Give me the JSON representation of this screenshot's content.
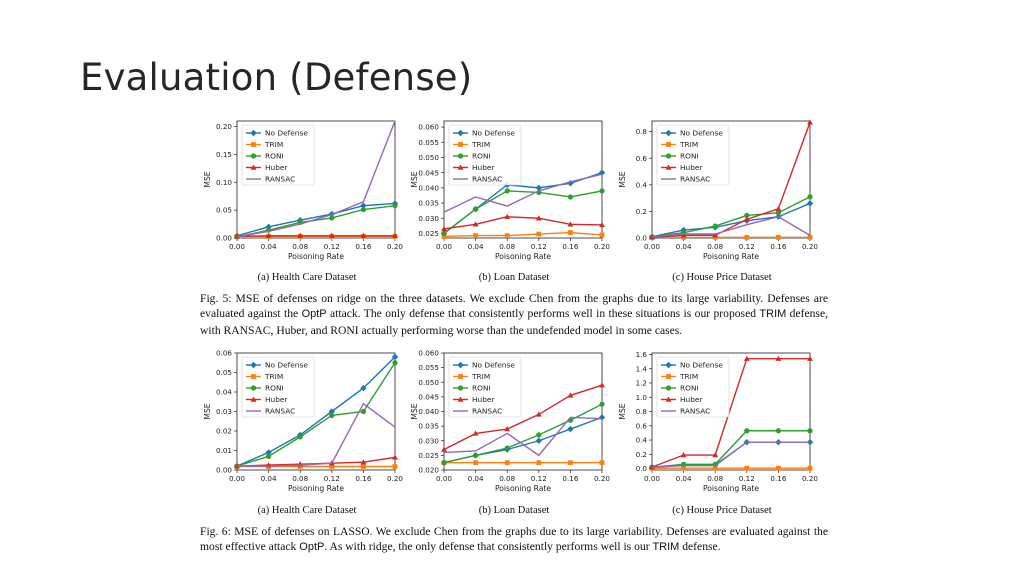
{
  "slide": {
    "title": "Evaluation (Defense)"
  },
  "colors": {
    "No Defense": "#1f77b4",
    "TRIM": "#ff7f0e",
    "RONI": "#2ca02c",
    "Huber": "#d62728",
    "RANSAC": "#9467bd"
  },
  "legend_labels": [
    "No Defense",
    "TRIM",
    "RONI",
    "Huber",
    "RANSAC"
  ],
  "captions": {
    "fig5": {
      "p1": "Fig. 5: MSE of defenses on ridge on the three datasets. We exclude Chen from the graphs due to its large variability. Defenses are evaluated against the ",
      "attack": "OptP",
      "p2": " attack. The only defense that consistently performs well in these situations is our proposed ",
      "trim": "TRIM",
      "p3": " defense, with RANSAC, Huber, and RONI actually performing worse than the undefended model in some cases."
    },
    "fig6": {
      "p1": "Fig. 6: MSE of defenses on LASSO. We exclude Chen from the graphs due to its large variability. Defenses are evaluated against the most effective attack ",
      "attack": "OptP",
      "p2": ". As with ridge, the only defense that consistently performs well is our ",
      "trim": "TRIM",
      "p3": " defense."
    }
  },
  "chart_data": [
    {
      "type": "line",
      "figure": "Fig. 5",
      "subtitle": "(a) Health Care Dataset",
      "xlabel": "Poisoning Rate",
      "ylabel": "MSE",
      "x": [
        0.0,
        0.04,
        0.08,
        0.12,
        0.16,
        0.2
      ],
      "xticks": [
        "0.00",
        "0.04",
        "0.08",
        "0.12",
        "0.16",
        "0.20"
      ],
      "ylim": [
        0,
        0.21
      ],
      "yticks": [
        0.0,
        0.05,
        0.1,
        0.15,
        0.2
      ],
      "yticklabels": [
        "0.00",
        "0.05",
        "0.10",
        "0.15",
        "0.20"
      ],
      "series": [
        {
          "name": "No Defense",
          "values": [
            0.004,
            0.02,
            0.032,
            0.043,
            0.058,
            0.062
          ]
        },
        {
          "name": "TRIM",
          "values": [
            0.003,
            0.003,
            0.003,
            0.003,
            0.003,
            0.003
          ]
        },
        {
          "name": "RONI",
          "values": [
            0.002,
            0.014,
            0.028,
            0.036,
            0.051,
            0.058
          ]
        },
        {
          "name": "Huber",
          "values": [
            0.003,
            0.004,
            0.004,
            0.004,
            0.004,
            0.004
          ]
        },
        {
          "name": "RANSAC",
          "values": [
            0.002,
            0.012,
            0.025,
            0.042,
            0.065,
            0.21
          ]
        }
      ]
    },
    {
      "type": "line",
      "figure": "Fig. 5",
      "subtitle": "(b) Loan Dataset",
      "xlabel": "Poisoning Rate",
      "ylabel": "MSE",
      "x": [
        0.0,
        0.04,
        0.08,
        0.12,
        0.16,
        0.2
      ],
      "xticks": [
        "0.00",
        "0.04",
        "0.08",
        "0.12",
        "0.16",
        "0.20"
      ],
      "ylim": [
        0.0235,
        0.062
      ],
      "yticks": [
        0.025,
        0.03,
        0.035,
        0.04,
        0.045,
        0.05,
        0.055,
        0.06
      ],
      "yticklabels": [
        "0.025",
        "0.030",
        "0.035",
        "0.040",
        "0.045",
        "0.050",
        "0.055",
        "0.060"
      ],
      "series": [
        {
          "name": "No Defense",
          "values": [
            0.025,
            0.033,
            0.041,
            0.04,
            0.0415,
            0.045
          ]
        },
        {
          "name": "TRIM",
          "values": [
            0.024,
            0.0243,
            0.0243,
            0.0248,
            0.0253,
            0.0245
          ]
        },
        {
          "name": "RONI",
          "values": [
            0.025,
            0.033,
            0.039,
            0.0385,
            0.037,
            0.039
          ]
        },
        {
          "name": "Huber",
          "values": [
            0.0265,
            0.028,
            0.0305,
            0.03,
            0.028,
            0.0278
          ]
        },
        {
          "name": "RANSAC",
          "values": [
            0.032,
            0.037,
            0.034,
            0.039,
            0.042,
            0.0445
          ]
        }
      ]
    },
    {
      "type": "line",
      "figure": "Fig. 5",
      "subtitle": "(c) House Price Dataset",
      "xlabel": "Poisoning Rate",
      "ylabel": "MSE",
      "x": [
        0.0,
        0.04,
        0.08,
        0.12,
        0.16,
        0.2
      ],
      "xticks": [
        "0.00",
        "0.04",
        "0.08",
        "0.12",
        "0.16",
        "0.20"
      ],
      "ylim": [
        0,
        0.88
      ],
      "yticks": [
        0.0,
        0.2,
        0.4,
        0.6,
        0.8
      ],
      "yticklabels": [
        "0.0",
        "0.2",
        "0.4",
        "0.6",
        "0.8"
      ],
      "series": [
        {
          "name": "No Defense",
          "values": [
            0.01,
            0.06,
            0.08,
            0.13,
            0.16,
            0.26
          ]
        },
        {
          "name": "TRIM",
          "values": [
            0.005,
            0.005,
            0.005,
            0.005,
            0.005,
            0.005
          ]
        },
        {
          "name": "RONI",
          "values": [
            0.01,
            0.04,
            0.09,
            0.17,
            0.19,
            0.31
          ]
        },
        {
          "name": "Huber",
          "values": [
            0.005,
            0.02,
            0.02,
            0.14,
            0.22,
            0.87
          ]
        },
        {
          "name": "RANSAC",
          "values": [
            0.01,
            0.03,
            0.03,
            0.1,
            0.16,
            0.02
          ]
        }
      ]
    },
    {
      "type": "line",
      "figure": "Fig. 6",
      "subtitle": "(a) Health Care Dataset",
      "xlabel": "Poisoning Rate",
      "ylabel": "MSE",
      "x": [
        0.0,
        0.04,
        0.08,
        0.12,
        0.16,
        0.2
      ],
      "xticks": [
        "0.00",
        "0.04",
        "0.08",
        "0.12",
        "0.16",
        "0.20"
      ],
      "ylim": [
        0,
        0.06
      ],
      "yticks": [
        0.0,
        0.01,
        0.02,
        0.03,
        0.04,
        0.05,
        0.06
      ],
      "yticklabels": [
        "0.00",
        "0.01",
        "0.02",
        "0.03",
        "0.04",
        "0.05",
        "0.06"
      ],
      "series": [
        {
          "name": "No Defense",
          "values": [
            0.002,
            0.009,
            0.018,
            0.03,
            0.042,
            0.058
          ]
        },
        {
          "name": "TRIM",
          "values": [
            0.0018,
            0.0018,
            0.0018,
            0.0018,
            0.0018,
            0.0018
          ]
        },
        {
          "name": "RONI",
          "values": [
            0.002,
            0.007,
            0.017,
            0.028,
            0.03,
            0.055
          ]
        },
        {
          "name": "Huber",
          "values": [
            0.002,
            0.0025,
            0.003,
            0.0035,
            0.004,
            0.0065
          ]
        },
        {
          "name": "RANSAC",
          "values": [
            0.002,
            0.002,
            0.0025,
            0.0035,
            0.034,
            0.022
          ]
        }
      ]
    },
    {
      "type": "line",
      "figure": "Fig. 6",
      "subtitle": "(b) Loan Dataset",
      "xlabel": "Poisoning Rate",
      "ylabel": "MSE",
      "x": [
        0.0,
        0.04,
        0.08,
        0.12,
        0.16,
        0.2
      ],
      "xticks": [
        "0.00",
        "0.04",
        "0.08",
        "0.12",
        "0.16",
        "0.20"
      ],
      "ylim": [
        0.02,
        0.06
      ],
      "yticks": [
        0.02,
        0.025,
        0.03,
        0.035,
        0.04,
        0.045,
        0.05,
        0.055,
        0.06
      ],
      "yticklabels": [
        "0.020",
        "0.025",
        "0.030",
        "0.035",
        "0.040",
        "0.045",
        "0.050",
        "0.055",
        "0.060"
      ],
      "series": [
        {
          "name": "No Defense",
          "values": [
            0.0225,
            0.025,
            0.027,
            0.03,
            0.034,
            0.038
          ]
        },
        {
          "name": "TRIM",
          "values": [
            0.0225,
            0.0225,
            0.0225,
            0.0225,
            0.0225,
            0.0225
          ]
        },
        {
          "name": "RONI",
          "values": [
            0.0225,
            0.025,
            0.0275,
            0.032,
            0.037,
            0.0425
          ]
        },
        {
          "name": "Huber",
          "values": [
            0.027,
            0.0325,
            0.034,
            0.039,
            0.0455,
            0.049
          ]
        },
        {
          "name": "RANSAC",
          "values": [
            0.026,
            0.0265,
            0.0325,
            0.025,
            0.038,
            0.0375
          ]
        }
      ]
    },
    {
      "type": "line",
      "figure": "Fig. 6",
      "subtitle": "(c) House Price Dataset",
      "xlabel": "Poisoning Rate",
      "ylabel": "MSE",
      "x": [
        0.0,
        0.04,
        0.08,
        0.12,
        0.16,
        0.2
      ],
      "xticks": [
        "0.00",
        "0.04",
        "0.08",
        "0.12",
        "0.16",
        "0.20"
      ],
      "ylim": [
        -0.02,
        1.62
      ],
      "yticks": [
        0.0,
        0.2,
        0.4,
        0.6,
        0.8,
        1.0,
        1.2,
        1.4,
        1.6
      ],
      "yticklabels": [
        "0.0",
        "0.2",
        "0.4",
        "0.6",
        "0.8",
        "1.0",
        "1.2",
        "1.4",
        "1.6"
      ],
      "series": [
        {
          "name": "No Defense",
          "values": [
            0.02,
            0.05,
            0.05,
            0.37,
            0.37,
            0.37
          ]
        },
        {
          "name": "TRIM",
          "values": [
            0.005,
            0.005,
            0.005,
            0.005,
            0.005,
            0.005
          ]
        },
        {
          "name": "RONI",
          "values": [
            0.02,
            0.06,
            0.06,
            0.53,
            0.53,
            0.53
          ]
        },
        {
          "name": "Huber",
          "values": [
            0.02,
            0.19,
            0.19,
            1.54,
            1.54,
            1.54
          ]
        },
        {
          "name": "RANSAC",
          "values": [
            0.02,
            0.04,
            0.04,
            0.37,
            0.37,
            0.37
          ]
        }
      ]
    }
  ]
}
